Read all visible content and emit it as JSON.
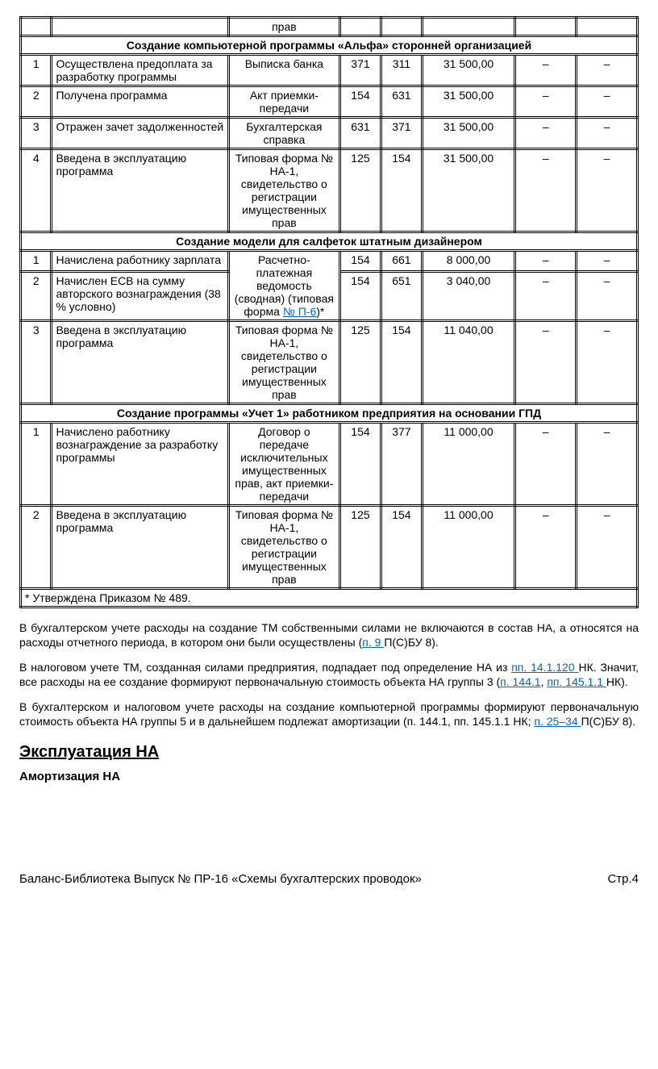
{
  "table": {
    "topCell": "прав",
    "sectionA": "Создание компьютерной программы «Альфа» сторонней организацией",
    "rowsA": [
      {
        "n": "1",
        "desc": "Осуществлена предоплата за разработку программы",
        "doc": "Выписка банка",
        "d1": "371",
        "d2": "311",
        "amt": "31 500,00",
        "c1": "–",
        "c2": "–"
      },
      {
        "n": "2",
        "desc": "Получена программа",
        "doc": "Акт приемки-передачи",
        "d1": "154",
        "d2": "631",
        "amt": "31 500,00",
        "c1": "–",
        "c2": "–"
      },
      {
        "n": "3",
        "desc": "Отражен зачет задолженностей",
        "doc": "Бухгалтерская справка",
        "d1": "631",
        "d2": "371",
        "amt": "31 500,00",
        "c1": "–",
        "c2": "–"
      },
      {
        "n": "4",
        "desc": "Введена в эксплуатацию программа",
        "doc": "Типовая форма № НА-1, свидетельство о регистрации имущественных прав",
        "d1": "125",
        "d2": "154",
        "amt": "31 500,00",
        "c1": "–",
        "c2": "–"
      }
    ],
    "sectionB": "Создание модели для салфеток штатным дизайнером",
    "rowsB": [
      {
        "n": "1",
        "desc": "Начислена работнику зарплата",
        "d1": "154",
        "d2": "661",
        "amt": "8 000,00",
        "c1": "–",
        "c2": "–"
      },
      {
        "n": "2",
        "desc": " Начислен ЕСВ на сумму авторского вознаграждения (38 % условно)",
        "d1": "154",
        "d2": "651",
        "amt": "3 040,00",
        "c1": "–",
        "c2": "–"
      },
      {
        "n": "3",
        "desc": "Введена в эксплуатацию программа",
        "doc": "Типовая форма № НА-1, свидетельство о регистрации имущественных прав",
        "d1": "125",
        "d2": "154",
        "amt": "11 040,00",
        "c1": "–",
        "c2": "–"
      }
    ],
    "mergedDocB_pre": "Расчетно-платежная ведомость (сводная) (типовая форма ",
    "mergedDocB_link": "№ П-6",
    "mergedDocB_post": ")*",
    "sectionC": "Создание программы «Учет 1» работником предприятия на основании ГПД",
    "rowsC": [
      {
        "n": "1",
        "desc": "Начислено работнику вознаграждение за разработку программы",
        "doc": "Договор о передаче исключительных имущественных прав, акт приемки-передачи",
        "d1": "154",
        "d2": "377",
        "amt": "11 000,00",
        "c1": "–",
        "c2": "–"
      },
      {
        "n": "2",
        "desc": "Введена в эксплуатацию программа",
        "doc": "Типовая форма № НА-1, свидетельство о регистрации имущественных прав",
        "d1": "125",
        "d2": "154",
        "amt": "11 000,00",
        "c1": "–",
        "c2": "–"
      }
    ],
    "footnote": "* Утверждена Приказом № 489."
  },
  "para1_a": "В бухгалтерском учете расходы на создание ТМ собственными силами не включаются в состав НА, а относятся на расходы отчетного периода, в котором они были осуществлены (",
  "para1_link": "п. 9 ",
  "para1_b": "П(С)БУ 8).",
  "para2_a": "В налоговом учете ТМ, созданная силами предприятия, подпадает под определение НА из ",
  "para2_link1": "пп. 14.1.120 ",
  "para2_b": "НК. Значит, все расходы на ее создание формируют первоначальную стоимость объекта НА группы 3 (",
  "para2_link2": "п. 144.1",
  "para2_c": ", ",
  "para2_link3": "пп. 145.1.1 ",
  "para2_d": "НК).",
  "para3_a": "В бухгалтерском и налоговом учете расходы на создание компьютерной программы формируют первоначальную стоимость объекта НА группы 5 и в дальнейшем подлежат амортизации (п. 144.1, пп. 145.1.1 НК; ",
  "para3_link": "п. 25–34 ",
  "para3_b": "П(С)БУ 8).",
  "h2": "Эксплуатация НА",
  "h3": "Амортизация НА",
  "footerLeft": "Баланс-Библиотека Выпуск № ПР-16 «Схемы бухгалтерских проводок»",
  "footerRight": "Стр.4"
}
